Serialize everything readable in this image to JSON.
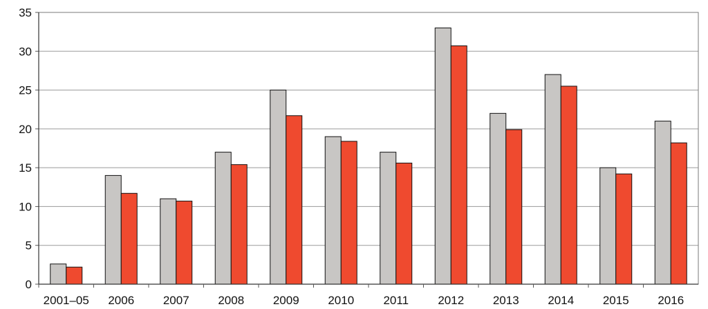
{
  "chart_data": {
    "type": "bar",
    "categories": [
      "2001–05",
      "2006",
      "2007",
      "2008",
      "2009",
      "2010",
      "2011",
      "2012",
      "2013",
      "2014",
      "2015",
      "2016"
    ],
    "series": [
      {
        "values": [
          2.6,
          14,
          11,
          17,
          25,
          19,
          17,
          33,
          22,
          27,
          15,
          21
        ],
        "color": "#c8c6c4"
      },
      {
        "values": [
          2.2,
          11.7,
          10.7,
          15.4,
          21.7,
          18.4,
          15.6,
          30.7,
          19.9,
          25.5,
          14.2,
          18.2
        ],
        "color": "#ef4a2f"
      }
    ],
    "yticks": [
      "0",
      "5",
      "10",
      "15",
      "20",
      "25",
      "30",
      "35"
    ],
    "ylim": [
      0,
      35
    ],
    "grid": true,
    "title": "",
    "xlabel": "",
    "ylabel": ""
  }
}
